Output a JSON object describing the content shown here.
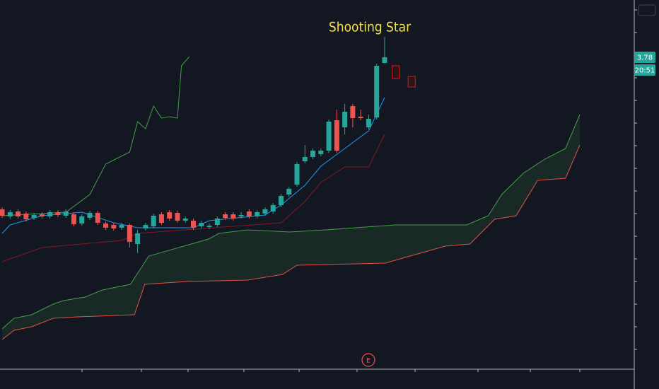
{
  "chart_data": {
    "type": "candlestick",
    "annotation": "Shooting Star",
    "event_marker": "E",
    "price_label": 3.78,
    "countdown": "20:51",
    "xlim": [
      -0.27,
      79.33
    ],
    "ylim": [
      1.575,
      4.185
    ],
    "up_color": "#26a69a",
    "down_color": "#ef5350",
    "open": [
      2.705,
      2.655,
      2.69,
      2.675,
      2.645,
      2.67,
      2.655,
      2.685,
      2.66,
      2.67,
      2.605,
      2.645,
      2.68,
      2.605,
      2.595,
      2.575,
      2.595,
      2.46,
      2.57,
      2.585,
      2.67,
      2.685,
      2.68,
      2.625,
      2.625,
      2.585,
      2.58,
      2.595,
      2.67,
      2.67,
      2.655,
      2.69,
      2.655,
      2.675,
      2.69,
      2.735,
      2.81,
      2.88,
      3.045,
      3.075,
      3.095,
      3.12,
      3.335,
      3.285,
      3.435,
      3.36,
      3.285,
      3.355,
      3.74
    ],
    "high": [
      2.72,
      2.7,
      2.705,
      2.69,
      2.68,
      2.685,
      2.7,
      2.7,
      2.705,
      2.685,
      2.67,
      2.695,
      2.695,
      2.62,
      2.61,
      2.61,
      2.605,
      2.56,
      2.61,
      2.675,
      2.685,
      2.7,
      2.695,
      2.655,
      2.64,
      2.625,
      2.605,
      2.655,
      2.685,
      2.685,
      2.685,
      2.705,
      2.7,
      2.72,
      2.75,
      2.815,
      2.865,
      3.04,
      3.16,
      3.135,
      3.135,
      3.34,
      3.41,
      3.45,
      3.45,
      3.41,
      3.375,
      3.735,
      3.925
    ],
    "low": [
      2.645,
      2.64,
      2.64,
      2.62,
      2.63,
      2.64,
      2.64,
      2.65,
      2.645,
      2.585,
      2.59,
      2.63,
      2.595,
      2.56,
      2.555,
      2.56,
      2.435,
      2.395,
      2.555,
      2.57,
      2.595,
      2.625,
      2.61,
      2.61,
      2.56,
      2.57,
      2.565,
      2.58,
      2.63,
      2.625,
      2.64,
      2.64,
      2.64,
      2.66,
      2.675,
      2.72,
      2.795,
      2.865,
      3.03,
      3.06,
      3.08,
      3.105,
      3.105,
      3.235,
      3.285,
      3.335,
      3.27,
      3.34,
      3.735
    ],
    "close": [
      2.66,
      2.685,
      2.655,
      2.635,
      2.665,
      2.655,
      2.685,
      2.665,
      2.69,
      2.6,
      2.655,
      2.68,
      2.61,
      2.575,
      2.57,
      2.595,
      2.475,
      2.535,
      2.595,
      2.66,
      2.61,
      2.64,
      2.625,
      2.64,
      2.575,
      2.61,
      2.59,
      2.64,
      2.645,
      2.64,
      2.665,
      2.655,
      2.685,
      2.705,
      2.735,
      2.8,
      2.85,
      3.025,
      3.075,
      3.12,
      3.12,
      3.325,
      3.12,
      3.395,
      3.35,
      3.35,
      3.345,
      3.72,
      3.78
    ],
    "projections": {
      "x": [
        49.4,
        51.4
      ],
      "high": [
        3.72,
        3.645
      ],
      "low": [
        3.63,
        3.57
      ],
      "color": "#b71c1c"
    },
    "series": [
      {
        "color": "#2196f3",
        "x": [
          0,
          1,
          5,
          10,
          14,
          17,
          24,
          26,
          33,
          35,
          38,
          40,
          43,
          46,
          48
        ],
        "values": [
          2.535,
          2.595,
          2.66,
          2.685,
          2.61,
          2.575,
          2.575,
          2.625,
          2.665,
          2.735,
          2.875,
          3.01,
          3.135,
          3.26,
          3.495
        ]
      },
      {
        "color": "#801922",
        "x": [
          0,
          5,
          15,
          17,
          35,
          38,
          40,
          43,
          46,
          48
        ],
        "values": [
          2.335,
          2.435,
          2.485,
          2.535,
          2.61,
          2.76,
          2.895,
          3.005,
          3.005,
          3.235
        ]
      },
      {
        "color": "#43a047",
        "x": [
          0,
          8,
          11,
          13,
          16,
          17,
          18,
          19,
          20,
          21,
          22,
          22.5,
          23.5
        ],
        "values": [
          2.66,
          2.685,
          2.81,
          3.025,
          3.11,
          3.325,
          3.275,
          3.435,
          3.35,
          3.36,
          3.35,
          3.72,
          3.785
        ]
      },
      {
        "color": "#43a047",
        "x": [
          0,
          1.5,
          3.7,
          6.4,
          7.7,
          10.4,
          12.6,
          16.1,
          18.4,
          22.8,
          25.9,
          27.2,
          30.8,
          36.1,
          40.6,
          49.4,
          58.3,
          61,
          62.7,
          65.4,
          68.1,
          70.7,
          72.5
        ],
        "values": [
          1.86,
          1.935,
          1.96,
          2.035,
          2.06,
          2.085,
          2.135,
          2.175,
          2.375,
          2.445,
          2.495,
          2.535,
          2.56,
          2.545,
          2.56,
          2.595,
          2.595,
          2.66,
          2.81,
          2.96,
          3.06,
          3.135,
          3.375
        ]
      },
      {
        "color": "#e0524a",
        "x": [
          0,
          1.5,
          3.7,
          6.4,
          9.5,
          16.6,
          17.9,
          23.2,
          30.8,
          35.2,
          37,
          48.1,
          51.2,
          55.6,
          58.7,
          61.8,
          64.5,
          67.2,
          70.7,
          72.5
        ],
        "values": [
          1.785,
          1.85,
          1.875,
          1.935,
          1.945,
          1.96,
          2.175,
          2.195,
          2.205,
          2.245,
          2.31,
          2.325,
          2.375,
          2.445,
          2.46,
          2.635,
          2.66,
          2.91,
          2.925,
          3.16
        ]
      }
    ],
    "cloud_color": "rgba(67,160,71,0.13)"
  }
}
